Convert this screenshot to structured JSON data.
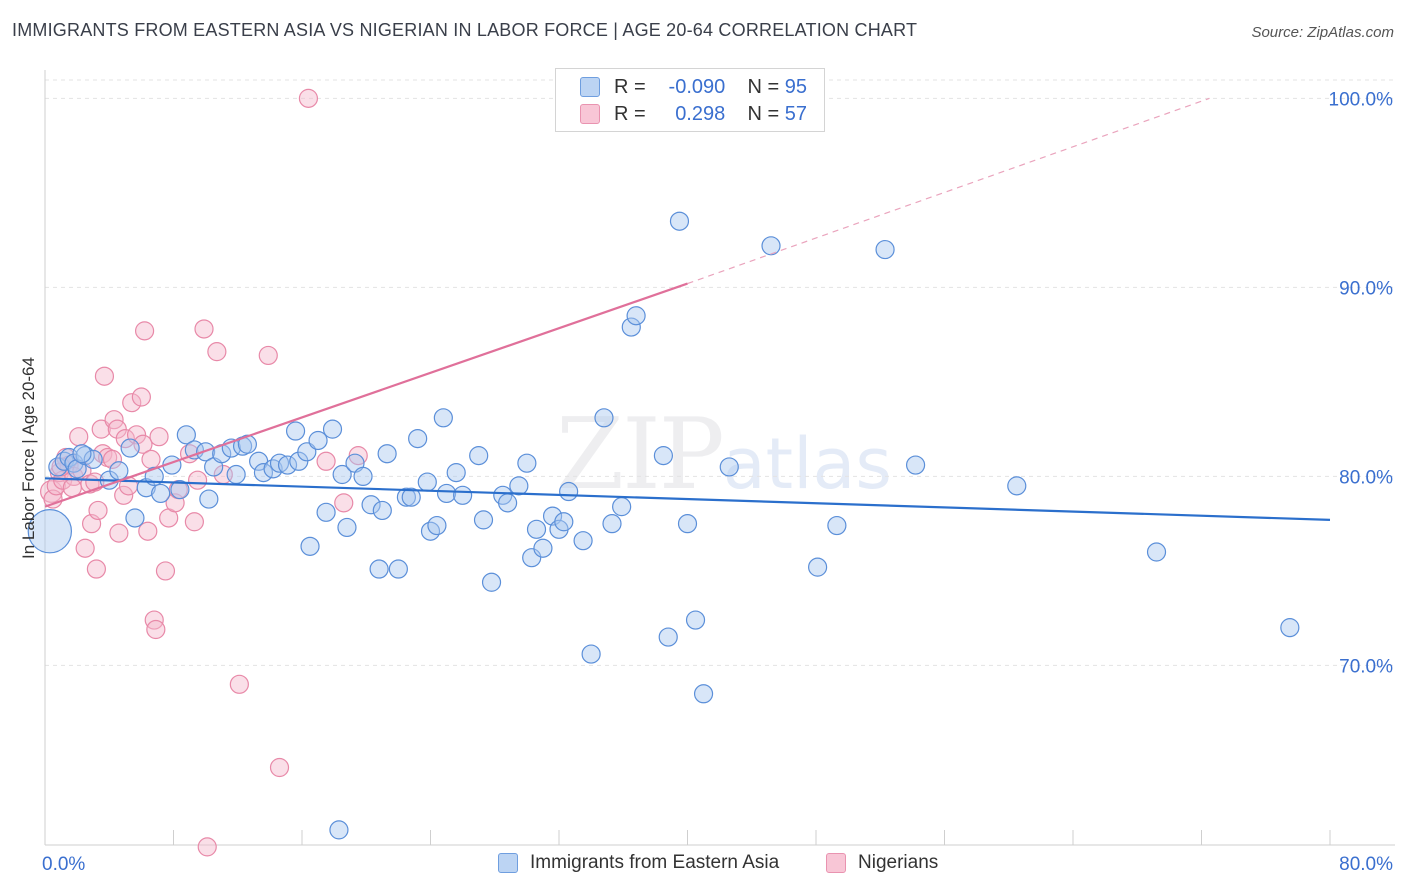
{
  "header": {
    "title": "IMMIGRANTS FROM EASTERN ASIA VS NIGERIAN IN LABOR FORCE | AGE 20-64 CORRELATION CHART",
    "source": "Source: ZipAtlas.com"
  },
  "watermark": {
    "zip": "ZIP",
    "atlas": "atlas"
  },
  "stats": [
    {
      "r_label": "R =",
      "r_value": "-0.090",
      "n_label": "N =",
      "n_value": "95"
    },
    {
      "r_label": "R =",
      "r_value": "0.298",
      "n_label": "N =",
      "n_value": "57"
    }
  ],
  "colors": {
    "blue_fill": "#a9c8f0",
    "blue_stroke": "#5b8fd9",
    "blue_line": "#2b6fcc",
    "pink_fill": "#f5b8cc",
    "pink_stroke": "#e889a8",
    "pink_line": "#e0709a",
    "grid": "#e3e3e3",
    "axis_text": "#3a6fcf"
  },
  "chart_data": {
    "type": "scatter",
    "title": "IMMIGRANTS FROM EASTERN ASIA VS NIGERIAN IN LABOR FORCE | AGE 20-64 CORRELATION CHART",
    "xlabel": "",
    "ylabel": "In Labor Force | Age 20-64",
    "xlim": [
      0,
      80
    ],
    "ylim": [
      60.5,
      101.5
    ],
    "x_tick_labels": [
      "0.0%",
      "80.0%"
    ],
    "y_ticks": [
      70,
      80,
      90,
      100
    ],
    "y_tick_labels": [
      "70.0%",
      "80.0%",
      "90.0%",
      "100.0%"
    ],
    "grid": true,
    "legend": [
      "Immigrants from Eastern Asia",
      "Nigerians"
    ],
    "series": [
      {
        "name": "Immigrants from Eastern Asia",
        "color": "blue",
        "trend": {
          "x0": 0,
          "y0": 79.9,
          "x1": 80,
          "y1": 77.7
        },
        "points": [
          [
            0.3,
            77.1,
            24
          ],
          [
            0.8,
            80.5,
            10
          ],
          [
            1.2,
            80.8,
            10
          ],
          [
            1.5,
            81.0,
            10
          ],
          [
            1.8,
            80.7,
            10
          ],
          [
            2.0,
            80.4,
            10
          ],
          [
            2.5,
            81.1,
            10
          ],
          [
            3.0,
            80.9,
            10
          ],
          [
            4.0,
            79.8,
            10
          ],
          [
            4.6,
            80.3,
            10
          ],
          [
            5.3,
            81.5,
            10
          ],
          [
            5.6,
            77.8,
            10
          ],
          [
            6.3,
            79.4,
            10
          ],
          [
            6.8,
            80.0,
            10
          ],
          [
            7.2,
            79.1,
            10
          ],
          [
            7.9,
            80.6,
            10
          ],
          [
            8.4,
            79.3,
            10
          ],
          [
            8.8,
            82.2,
            10
          ],
          [
            9.3,
            81.4,
            10
          ],
          [
            10.0,
            81.3,
            10
          ],
          [
            10.2,
            78.8,
            10
          ],
          [
            10.5,
            80.5,
            10
          ],
          [
            11.0,
            81.2,
            10
          ],
          [
            11.6,
            81.5,
            10
          ],
          [
            11.9,
            80.1,
            10
          ],
          [
            12.3,
            81.6,
            10
          ],
          [
            12.6,
            81.7,
            10
          ],
          [
            13.3,
            80.8,
            10
          ],
          [
            13.6,
            80.2,
            10
          ],
          [
            14.2,
            80.4,
            10
          ],
          [
            14.6,
            80.7,
            10
          ],
          [
            15.1,
            80.6,
            10
          ],
          [
            15.6,
            82.4,
            10
          ],
          [
            15.8,
            80.8,
            10
          ],
          [
            16.3,
            81.3,
            10
          ],
          [
            16.5,
            76.3,
            10
          ],
          [
            17.0,
            81.9,
            10
          ],
          [
            17.5,
            78.1,
            10
          ],
          [
            17.9,
            82.5,
            10
          ],
          [
            18.5,
            80.1,
            10
          ],
          [
            18.8,
            77.3,
            10
          ],
          [
            19.3,
            80.7,
            10
          ],
          [
            19.8,
            80.0,
            10
          ],
          [
            20.3,
            78.5,
            10
          ],
          [
            20.8,
            75.1,
            10
          ],
          [
            21.0,
            78.2,
            10
          ],
          [
            21.3,
            81.2,
            10
          ],
          [
            22.0,
            75.1,
            10
          ],
          [
            22.5,
            78.9,
            10
          ],
          [
            22.8,
            78.9,
            10
          ],
          [
            23.2,
            82.0,
            10
          ],
          [
            23.8,
            79.7,
            10
          ],
          [
            24.0,
            77.1,
            10
          ],
          [
            24.4,
            77.4,
            10
          ],
          [
            24.8,
            83.1,
            10
          ],
          [
            25.0,
            79.1,
            10
          ],
          [
            25.6,
            80.2,
            10
          ],
          [
            26.0,
            79.0,
            10
          ],
          [
            27.0,
            81.1,
            10
          ],
          [
            27.3,
            77.7,
            10
          ],
          [
            27.8,
            74.4,
            10
          ],
          [
            28.5,
            79.0,
            10
          ],
          [
            28.8,
            78.6,
            10
          ],
          [
            29.5,
            79.5,
            10
          ],
          [
            30.0,
            80.7,
            10
          ],
          [
            30.3,
            75.7,
            10
          ],
          [
            30.6,
            77.2,
            10
          ],
          [
            31.0,
            76.2,
            10
          ],
          [
            31.6,
            77.9,
            10
          ],
          [
            32.0,
            77.2,
            10
          ],
          [
            32.3,
            77.6,
            10
          ],
          [
            32.6,
            79.2,
            10
          ],
          [
            33.5,
            76.6,
            10
          ],
          [
            34.0,
            70.6,
            10
          ],
          [
            34.8,
            83.1,
            10
          ],
          [
            35.3,
            77.5,
            10
          ],
          [
            35.9,
            78.4,
            10
          ],
          [
            36.5,
            87.9,
            10
          ],
          [
            36.8,
            88.5,
            10
          ],
          [
            38.5,
            81.1,
            10
          ],
          [
            38.8,
            71.5,
            10
          ],
          [
            39.5,
            93.5,
            10
          ],
          [
            40.0,
            77.5,
            10
          ],
          [
            40.5,
            72.4,
            10
          ],
          [
            41.0,
            68.5,
            10
          ],
          [
            42.6,
            80.5,
            10
          ],
          [
            45.2,
            92.2,
            10
          ],
          [
            48.1,
            75.2,
            10
          ],
          [
            49.3,
            77.4,
            10
          ],
          [
            52.3,
            92.0,
            10
          ],
          [
            54.2,
            80.6,
            10
          ],
          [
            60.5,
            79.5,
            10
          ],
          [
            69.2,
            76.0,
            10
          ],
          [
            77.5,
            72.0,
            10
          ],
          [
            18.3,
            61.3,
            10
          ],
          [
            2.3,
            81.2,
            10
          ]
        ]
      },
      {
        "name": "Nigerians",
        "color": "pink",
        "trend": {
          "x0": 0,
          "y0": 78.4,
          "x1": 40,
          "y1": 90.2,
          "dash_to_x": 72.5,
          "dash_to_y": 100.0
        },
        "points": [
          [
            0.4,
            79.2,
            12
          ],
          [
            0.5,
            78.8,
            10
          ],
          [
            0.7,
            79.5,
            10
          ],
          [
            0.9,
            80.2,
            10
          ],
          [
            1.1,
            79.8,
            10
          ],
          [
            1.3,
            81.0,
            10
          ],
          [
            1.5,
            80.6,
            10
          ],
          [
            1.8,
            80.0,
            10
          ],
          [
            2.1,
            82.1,
            10
          ],
          [
            2.3,
            80.3,
            10
          ],
          [
            2.5,
            76.2,
            10
          ],
          [
            2.8,
            79.6,
            10
          ],
          [
            2.9,
            77.5,
            10
          ],
          [
            3.1,
            79.7,
            10
          ],
          [
            3.2,
            75.1,
            10
          ],
          [
            3.3,
            78.2,
            10
          ],
          [
            3.5,
            82.5,
            10
          ],
          [
            3.6,
            81.2,
            10
          ],
          [
            3.7,
            85.3,
            10
          ],
          [
            3.9,
            81.0,
            10
          ],
          [
            4.2,
            80.9,
            10
          ],
          [
            4.3,
            83.0,
            10
          ],
          [
            4.5,
            82.5,
            10
          ],
          [
            4.6,
            77.0,
            10
          ],
          [
            4.9,
            79.0,
            10
          ],
          [
            5.0,
            82.0,
            10
          ],
          [
            5.2,
            79.5,
            10
          ],
          [
            5.4,
            83.9,
            10
          ],
          [
            5.7,
            82.2,
            10
          ],
          [
            6.0,
            84.2,
            10
          ],
          [
            6.1,
            81.7,
            10
          ],
          [
            6.2,
            87.7,
            10
          ],
          [
            6.4,
            77.1,
            10
          ],
          [
            6.6,
            80.9,
            10
          ],
          [
            6.8,
            72.4,
            10
          ],
          [
            6.9,
            71.9,
            10
          ],
          [
            7.1,
            82.1,
            10
          ],
          [
            7.5,
            75.0,
            10
          ],
          [
            7.7,
            77.8,
            10
          ],
          [
            8.1,
            78.6,
            10
          ],
          [
            8.3,
            79.3,
            10
          ],
          [
            9.0,
            81.2,
            10
          ],
          [
            9.3,
            77.6,
            10
          ],
          [
            9.5,
            79.8,
            10
          ],
          [
            9.9,
            87.8,
            10
          ],
          [
            10.1,
            60.4,
            10
          ],
          [
            10.7,
            86.6,
            10
          ],
          [
            11.1,
            80.1,
            10
          ],
          [
            12.1,
            69.0,
            10
          ],
          [
            13.9,
            86.4,
            10
          ],
          [
            14.6,
            64.6,
            10
          ],
          [
            16.4,
            100.0,
            10
          ],
          [
            17.5,
            80.8,
            10
          ],
          [
            18.6,
            78.6,
            10
          ],
          [
            19.5,
            81.1,
            10
          ],
          [
            1.0,
            80.5,
            10
          ],
          [
            1.7,
            79.4,
            10
          ]
        ]
      }
    ]
  }
}
